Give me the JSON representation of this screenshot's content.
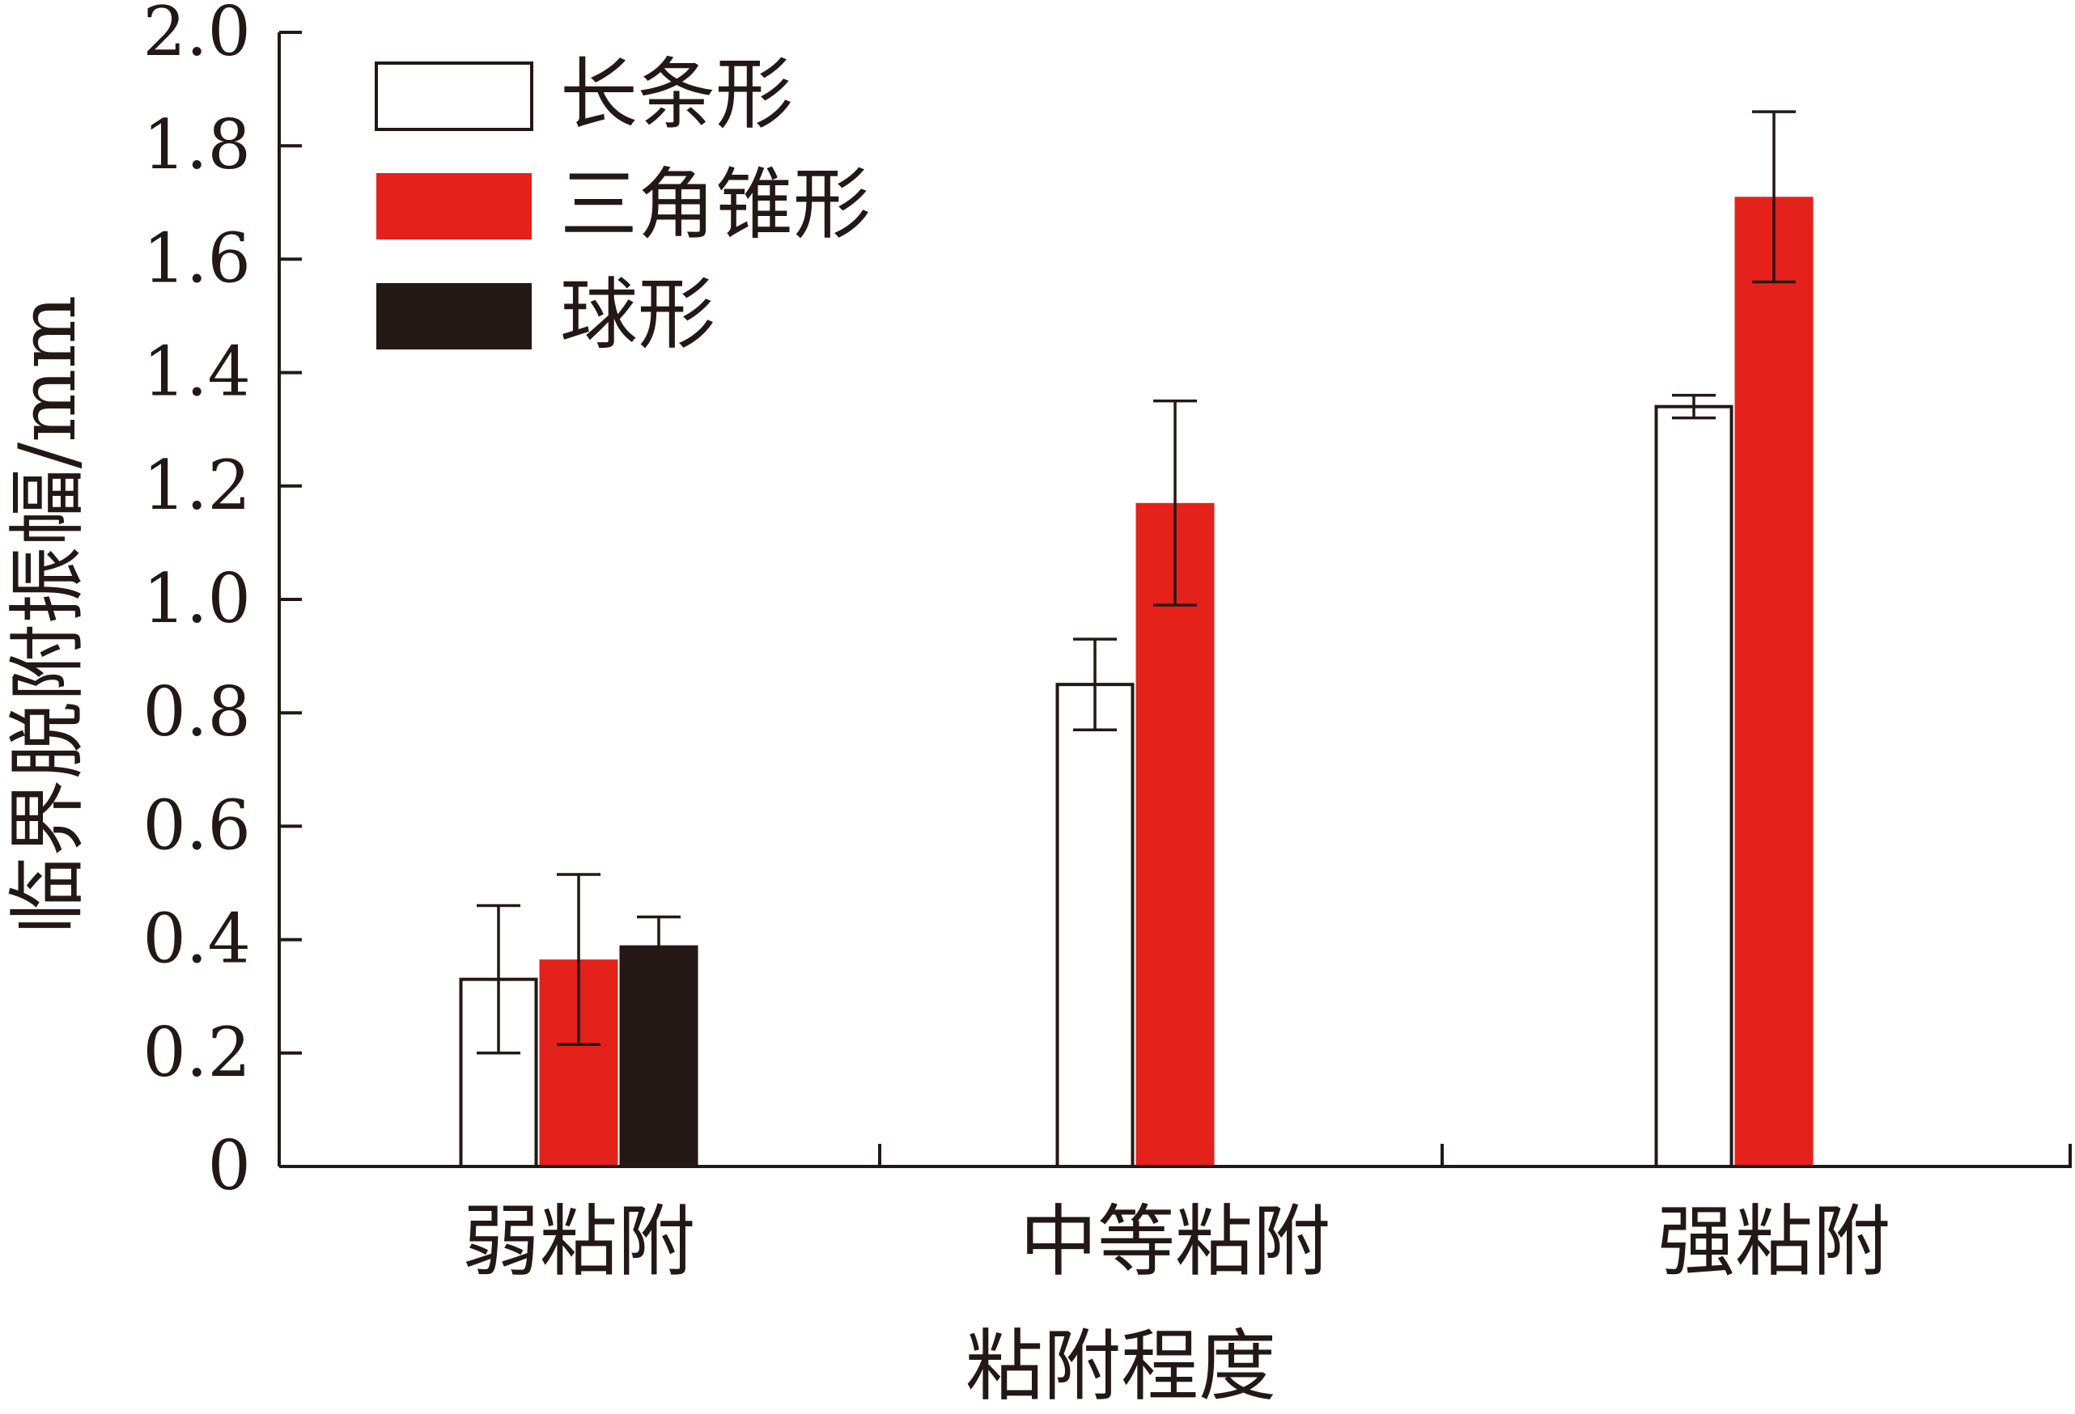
{
  "chart_data": {
    "type": "bar",
    "xlabel": "粘附程度",
    "ylabel": "临界脱附振幅/mm",
    "ylim": [
      0,
      2.0
    ],
    "yticks": [
      "0",
      "0.2",
      "0.4",
      "0.6",
      "0.8",
      "1.0",
      "1.2",
      "1.4",
      "1.6",
      "1.8",
      "2.0"
    ],
    "categories": [
      "弱粘附",
      "中等粘附",
      "强粘附"
    ],
    "legend_position": "top-left",
    "grid": false,
    "series": [
      {
        "name": "长条形",
        "fill": "#ffffff",
        "stroke": "#231815",
        "values": [
          0.33,
          0.85,
          1.34
        ],
        "errors": [
          0.13,
          0.08,
          0.02
        ]
      },
      {
        "name": "三角锥形",
        "fill": "#e5211c",
        "stroke": "#e5211c",
        "values": [
          0.365,
          1.17,
          1.71
        ],
        "errors": [
          0.15,
          0.18,
          0.15
        ]
      },
      {
        "name": "球形",
        "fill": "#231815",
        "stroke": "#231815",
        "values": [
          0.39,
          null,
          null
        ],
        "errors": [
          0.05,
          null,
          null
        ]
      }
    ]
  }
}
